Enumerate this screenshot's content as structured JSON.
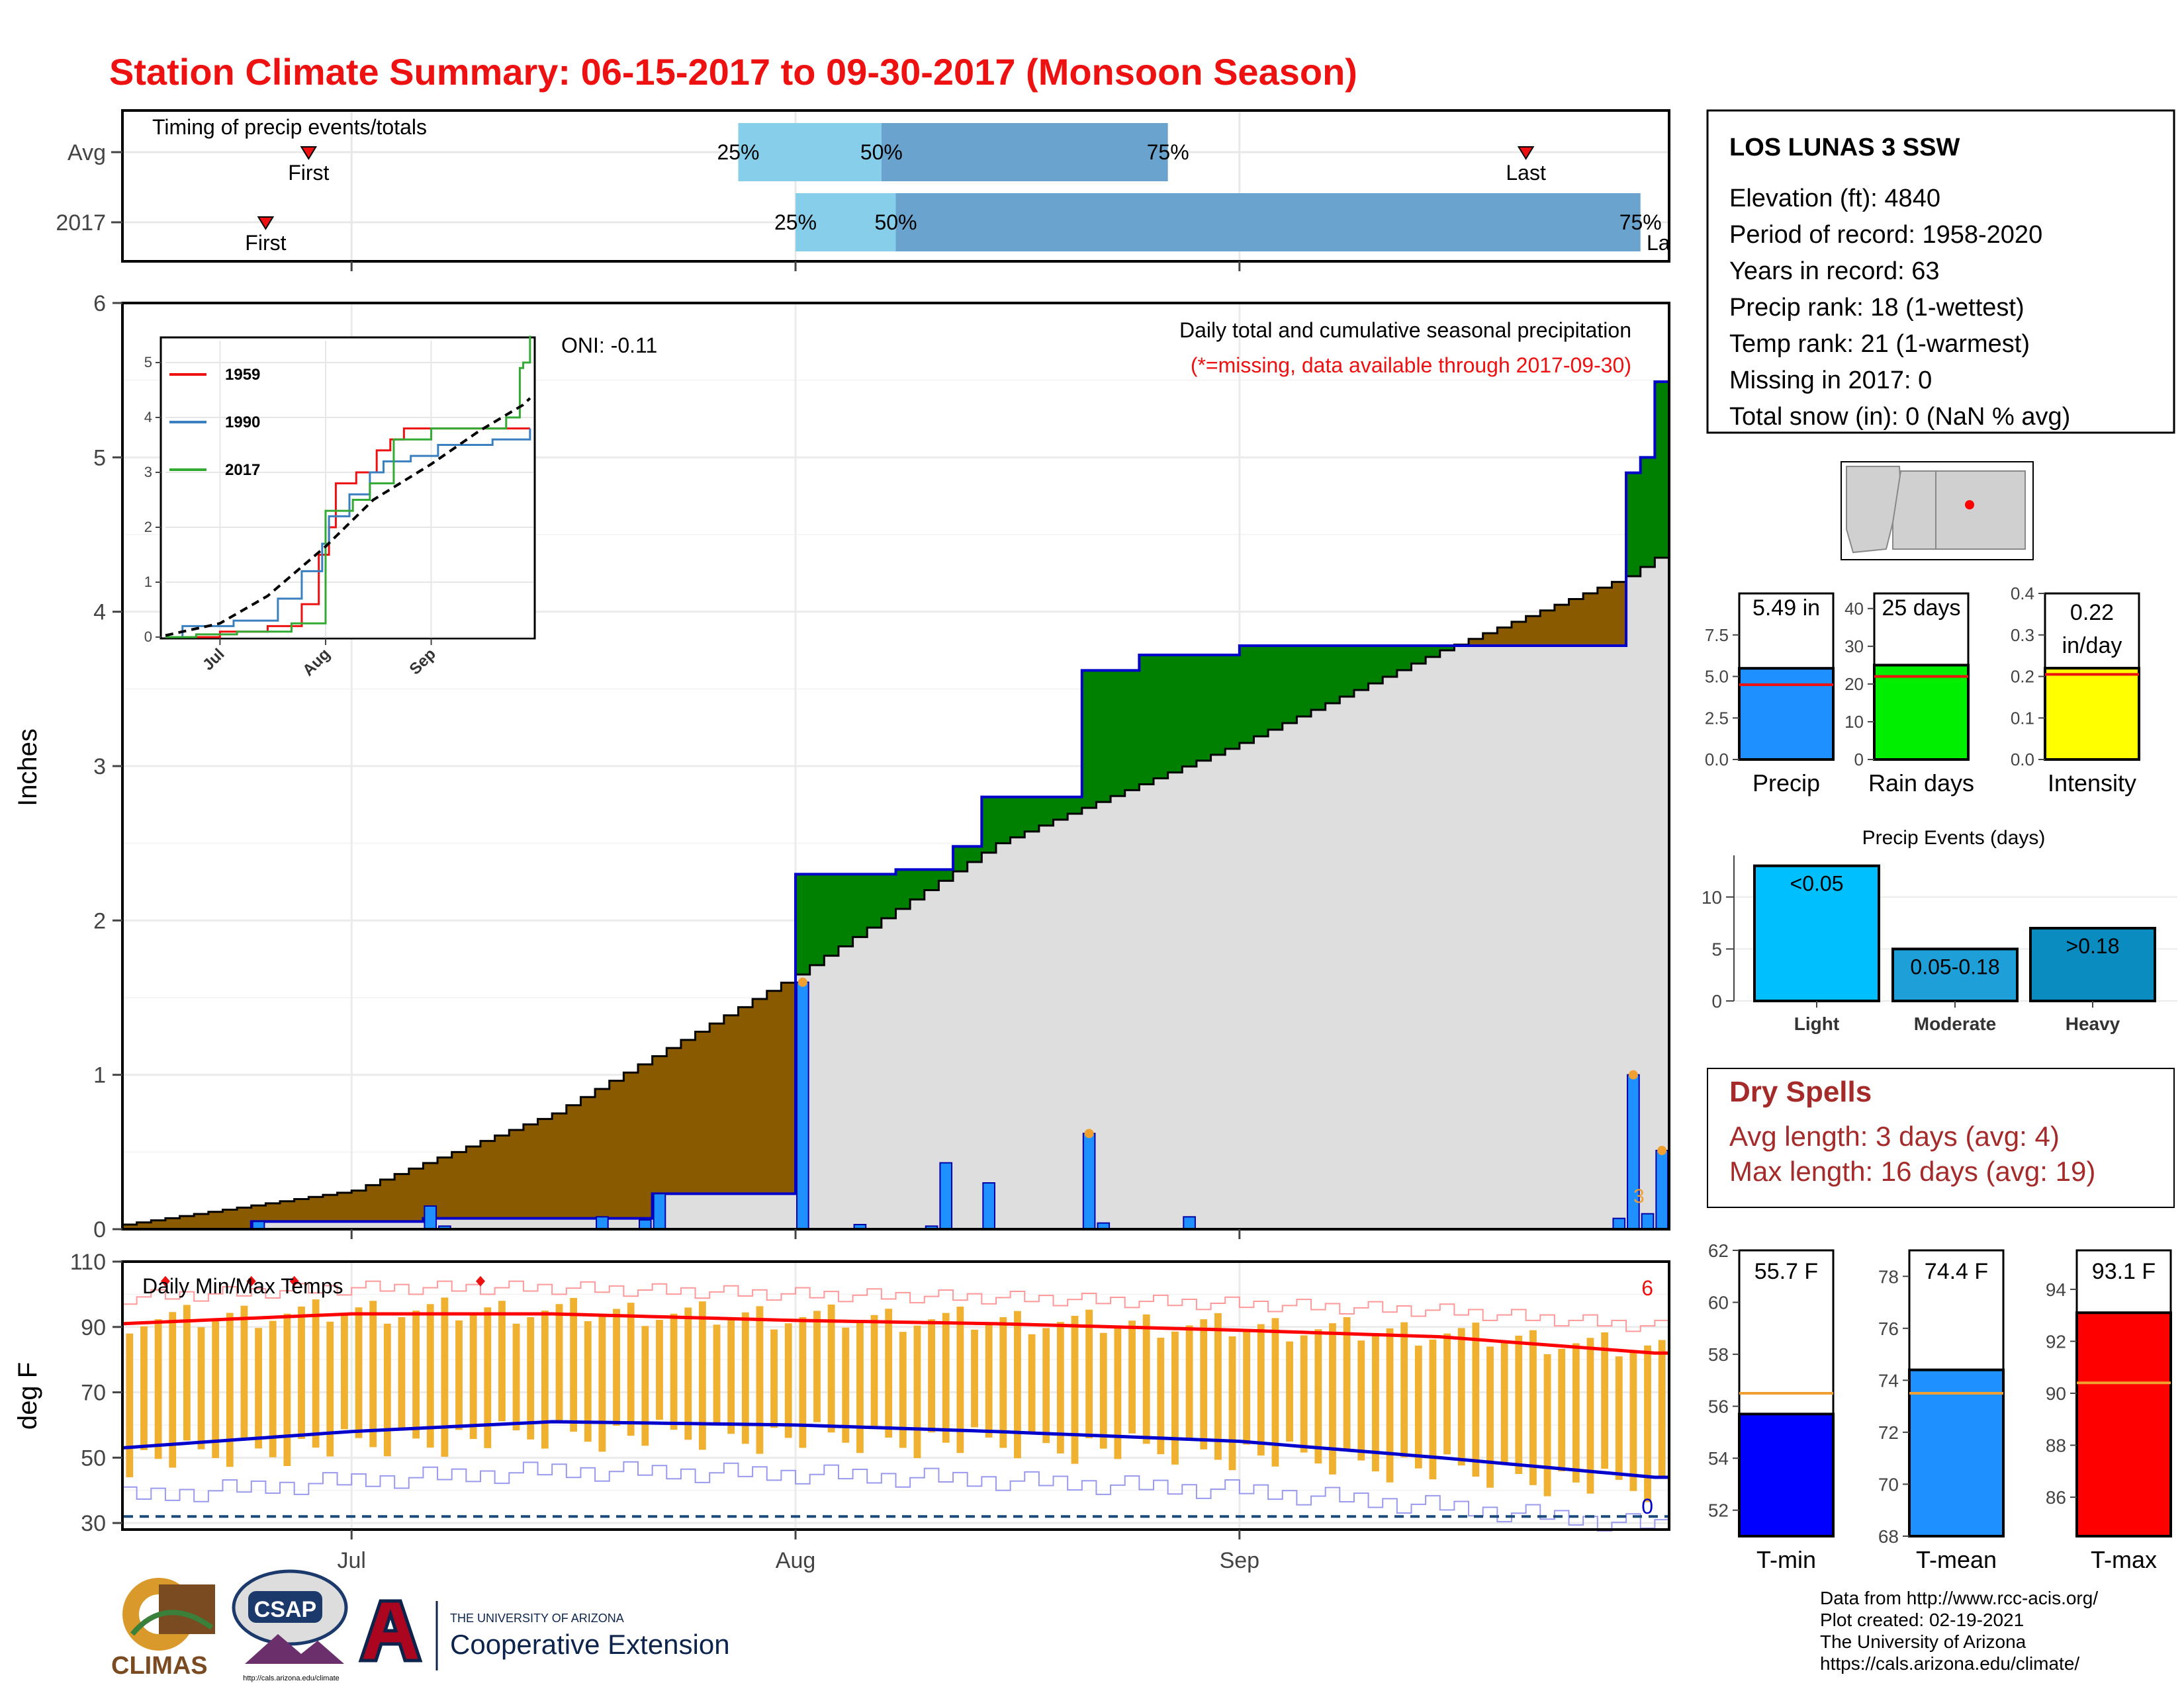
{
  "title": "Station Climate Summary: 06-15-2017 to 09-30-2017 (Monsoon Season)",
  "colors": {
    "title": "#ee1111",
    "cum_hist": "#dedede",
    "deficit": "#8a5a00",
    "surplus": "#008000",
    "daily_bar": "#1e90ff",
    "temp_bar": "#f0b030",
    "tmax": "#ff0000",
    "tmin": "#0000cc",
    "dry_spell": "#a52a2a",
    "light": "#00bfff",
    "moderate": "#1e9fd8",
    "heavy": "#0a8cc0"
  },
  "timing_panel": {
    "title": "Timing of precip events/totals",
    "rows": [
      {
        "label": "Avg",
        "first": "2017-06-28",
        "q25": "2017-07-28",
        "q50": "2017-08-07",
        "q75": "2017-08-27",
        "last": "2017-09-21",
        "first_label": "First",
        "last_label": "Last"
      },
      {
        "label": "2017",
        "first": "2017-06-25",
        "q25": "2017-08-01",
        "q50": "2017-08-08",
        "q75": "2017-09-29",
        "last": "2017-09-30",
        "first_label": "First",
        "last_label": "La"
      }
    ],
    "pct_labels": [
      "25%",
      "50%",
      "75%"
    ]
  },
  "station": {
    "name": "LOS LUNAS 3 SSW",
    "lines": [
      "Elevation (ft): 4840",
      "Period of record: 1958-2020",
      "Years in record: 63",
      "Precip rank: 18 (1-wettest)",
      "Temp rank: 21 (1-warmest)",
      "Missing in 2017: 0",
      "Total snow (in): 0 (NaN % avg)"
    ]
  },
  "main_chart": {
    "ylabel": "Inches",
    "oni": "ONI: -0.11",
    "note1": "Daily total and cumulative seasonal precipitation",
    "note2": "(*=missing, data available through 2017-09-30)",
    "missing_marker": "3",
    "x_ticks": [
      "Jul",
      "Aug",
      "Sep"
    ],
    "y_ticks": [
      "0",
      "1",
      "2",
      "3",
      "4",
      "5",
      "6"
    ]
  },
  "inset": {
    "legend": [
      "1959",
      "1990",
      "2017"
    ],
    "legend_colors": [
      "#ee1111",
      "#3a7fc0",
      "#33aa33"
    ],
    "y_ticks": [
      "0",
      "1",
      "2",
      "3",
      "4",
      "5"
    ],
    "x_ticks": [
      "Jul",
      "Aug",
      "Sep"
    ]
  },
  "temp_chart": {
    "ylabel": "deg F",
    "title": "Daily Min/Max Temps",
    "record_high_count": "6",
    "record_low_count": "0",
    "y_ticks": [
      "30",
      "50",
      "70",
      "90",
      "110"
    ],
    "x_ticks": [
      "Jul",
      "Aug",
      "Sep"
    ]
  },
  "precip_bars": [
    {
      "name": "Precip",
      "label": "5.49 in",
      "value": 5.49,
      "avg": 4.5,
      "ymax": 10.0,
      "ticks": [
        "0.0",
        "2.5",
        "5.0",
        "7.5"
      ],
      "color": "#1e90ff"
    },
    {
      "name": "Rain days",
      "label": "25 days",
      "value": 25,
      "avg": 22,
      "ymax": 44,
      "ticks": [
        "0",
        "10",
        "20",
        "30",
        "40"
      ],
      "color": "#00ee00"
    },
    {
      "name": "Intensity",
      "label": "0.22\nin/day",
      "label1": "0.22",
      "label2": "in/day",
      "value": 0.22,
      "avg": 0.205,
      "ymax": 0.4,
      "ticks": [
        "0.0",
        "0.1",
        "0.2",
        "0.3",
        "0.4"
      ],
      "color": "#ffff00"
    }
  ],
  "events": {
    "title": "Precip Events (days)",
    "ticks": [
      "0",
      "5",
      "10"
    ],
    "bars": [
      {
        "name": "Light",
        "label": "<0.05",
        "value": 13
      },
      {
        "name": "Moderate",
        "label": "0.05-0.18",
        "value": 5
      },
      {
        "name": "Heavy",
        "label": ">0.18",
        "value": 7
      }
    ]
  },
  "dry_spells": {
    "title": "Dry Spells",
    "line1": "Avg length: 3 days (avg: 4)",
    "line2": "Max length: 16 days (avg: 19)"
  },
  "temp_bars": [
    {
      "name": "T-min",
      "label": "55.7 F",
      "value": 55.7,
      "avg": 56.5,
      "ymin": 51,
      "ymax": 62,
      "ticks": [
        "52",
        "54",
        "56",
        "58",
        "60",
        "62"
      ],
      "color": "#0000ff"
    },
    {
      "name": "T-mean",
      "label": "74.4 F",
      "value": 74.4,
      "avg": 73.5,
      "ymin": 68,
      "ymax": 79,
      "ticks": [
        "68",
        "70",
        "72",
        "74",
        "76",
        "78"
      ],
      "color": "#1e90ff"
    },
    {
      "name": "T-max",
      "label": "93.1 F",
      "value": 93.1,
      "avg": 90.4,
      "ymin": 84.5,
      "ymax": 95.5,
      "ticks": [
        "86",
        "88",
        "90",
        "92",
        "94"
      ],
      "color": "#ff0000"
    }
  ],
  "footer": {
    "lines": [
      "Data from http://www.rcc-acis.org/",
      "Plot created: 02-19-2021",
      "The University of Arizona",
      "https://cals.arizona.edu/climate/"
    ],
    "logo_climas": "CLIMAS",
    "logo_csap": "CSAP",
    "logo_csap_url": "http://cals.arizona.edu/climate",
    "logo_ua_small": "THE UNIVERSITY OF ARIZONA",
    "logo_ua_big": "Cooperative Extension"
  },
  "chart_data": [
    {
      "type": "area",
      "title": "Daily total and cumulative seasonal precipitation",
      "ylabel": "Inches",
      "ylim": [
        0,
        6
      ],
      "x_range": [
        "2017-06-15",
        "2017-09-30"
      ],
      "series": [
        {
          "name": "Average cumulative",
          "x": [
            "2017-06-15",
            "2017-07-01",
            "2017-07-15",
            "2017-08-01",
            "2017-08-15",
            "2017-09-01",
            "2017-09-15",
            "2017-09-28",
            "2017-09-30"
          ],
          "values": [
            0.03,
            0.25,
            0.75,
            1.65,
            2.5,
            3.15,
            3.75,
            4.23,
            4.35
          ]
        },
        {
          "name": "2017 cumulative",
          "x": [
            "2017-06-15",
            "2017-06-24",
            "2017-07-06",
            "2017-07-22",
            "2017-08-01",
            "2017-08-08",
            "2017-08-12",
            "2017-08-14",
            "2017-08-21",
            "2017-08-25",
            "2017-09-01",
            "2017-09-28",
            "2017-09-29",
            "2017-09-30"
          ],
          "values": [
            0.0,
            0.05,
            0.07,
            0.23,
            2.3,
            2.33,
            2.48,
            2.8,
            3.62,
            3.72,
            3.78,
            4.9,
            5.0,
            5.49
          ]
        },
        {
          "name": "2017 daily",
          "x": [
            "2017-06-24",
            "2017-07-06",
            "2017-07-07",
            "2017-07-18",
            "2017-07-21",
            "2017-07-22",
            "2017-08-01",
            "2017-08-05",
            "2017-08-10",
            "2017-08-11",
            "2017-08-14",
            "2017-08-21",
            "2017-08-22",
            "2017-08-28",
            "2017-09-27",
            "2017-09-28",
            "2017-09-29",
            "2017-09-30"
          ],
          "values": [
            0.05,
            0.15,
            0.02,
            0.08,
            0.06,
            0.23,
            1.6,
            0.03,
            0.02,
            0.43,
            0.3,
            0.62,
            0.04,
            0.08,
            0.07,
            1.0,
            0.1,
            0.51
          ]
        }
      ]
    },
    {
      "type": "line",
      "title": "Daily Min/Max Temps",
      "ylabel": "deg F",
      "ylim": [
        28,
        110
      ],
      "x_range": [
        "2017-06-15",
        "2017-09-30"
      ],
      "series": [
        {
          "name": "Avg Tmax",
          "x": [
            "2017-06-15",
            "2017-07-01",
            "2017-07-15",
            "2017-08-01",
            "2017-08-15",
            "2017-09-01",
            "2017-09-15",
            "2017-09-30"
          ],
          "values": [
            91,
            94,
            94,
            92,
            91,
            89,
            87,
            82
          ]
        },
        {
          "name": "Avg Tmin",
          "x": [
            "2017-06-15",
            "2017-07-01",
            "2017-07-15",
            "2017-08-01",
            "2017-08-15",
            "2017-09-01",
            "2017-09-15",
            "2017-09-30"
          ],
          "values": [
            53,
            58,
            61,
            60,
            58,
            55,
            50,
            44
          ]
        }
      ]
    }
  ]
}
